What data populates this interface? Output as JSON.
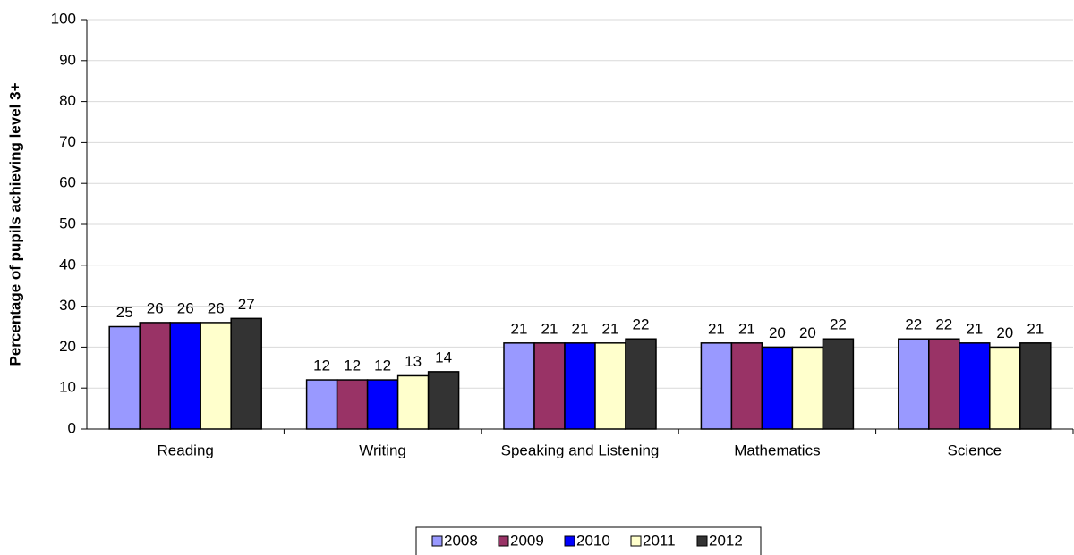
{
  "chart_data": {
    "type": "bar",
    "y_label": "Percentage of pupils achieving level 3+",
    "categories": [
      "Reading",
      "Writing",
      "Speaking and Listening",
      "Mathematics",
      "Science"
    ],
    "series": [
      {
        "name": "2008",
        "color": "#9999ff",
        "values": [
          25,
          12,
          21,
          21,
          22
        ]
      },
      {
        "name": "2009",
        "color": "#993366",
        "values": [
          26,
          12,
          21,
          21,
          22
        ]
      },
      {
        "name": "2010",
        "color": "#0000ff",
        "values": [
          26,
          12,
          21,
          20,
          21
        ]
      },
      {
        "name": "2011",
        "color": "#ffffcc",
        "values": [
          26,
          13,
          21,
          20,
          20
        ]
      },
      {
        "name": "2012",
        "color": "#333333",
        "values": [
          27,
          14,
          22,
          22,
          21
        ]
      }
    ],
    "ylim": [
      0,
      100
    ],
    "yticks": [
      0,
      10,
      20,
      30,
      40,
      50,
      60,
      70,
      80,
      90,
      100
    ],
    "grid": true,
    "legend": "bottom"
  }
}
